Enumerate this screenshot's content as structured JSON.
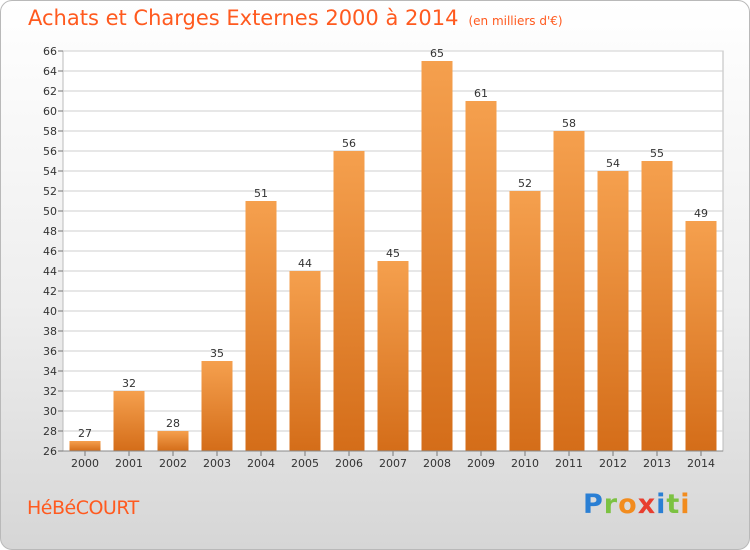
{
  "title": "Achats et Charges Externes 2000 à 2014",
  "unit": "(en milliers d'€)",
  "commune": "HéBéCOURT",
  "logo": {
    "letters": [
      "P",
      "r",
      "o",
      "x",
      "i",
      "t",
      "i"
    ],
    "colors": [
      "#2a7fd4",
      "#7cc242",
      "#f28c1e",
      "#e83e2f",
      "#2a7fd4",
      "#7cc242",
      "#f28c1e"
    ]
  },
  "colors": {
    "bar_top": "#f5a04e",
    "bar_bottom": "#d46d19",
    "accent": "#ff5a1f",
    "grid": "#cfcfcf"
  },
  "chart_data": {
    "type": "bar",
    "categories": [
      "2000",
      "2001",
      "2002",
      "2003",
      "2004",
      "2005",
      "2006",
      "2007",
      "2008",
      "2009",
      "2010",
      "2011",
      "2012",
      "2013",
      "2014"
    ],
    "values": [
      27,
      32,
      28,
      35,
      51,
      44,
      56,
      45,
      65,
      61,
      52,
      58,
      54,
      55,
      49
    ],
    "ylim": [
      26,
      66
    ],
    "ytick_step": 2,
    "grid": true
  }
}
